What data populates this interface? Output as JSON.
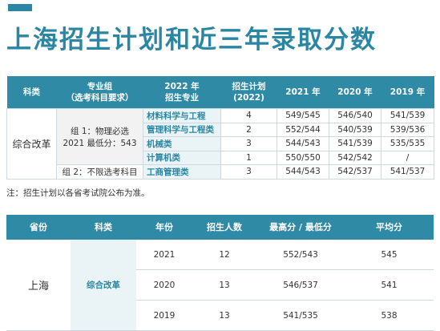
{
  "header": {
    "title": "上海招生计划和近三年录取分数"
  },
  "plan_table": {
    "columns": [
      [
        "科类"
      ],
      [
        "专业组",
        "（选考科目要求）"
      ],
      [
        "2022 年",
        "招生专业"
      ],
      [
        "招生计划",
        "(2022)"
      ],
      [
        "2021 年"
      ],
      [
        "2020 年"
      ],
      [
        "2019 年"
      ]
    ],
    "category": "综合改革",
    "groups": [
      {
        "label": [
          "组 1：物理必选",
          "2021 最低分：543"
        ],
        "rows": [
          [
            "材料科学与工程",
            4,
            "549/545",
            "546/540",
            "541/539"
          ],
          [
            "管理科学与工程类",
            2,
            "552/544",
            "540/539",
            "539/536"
          ],
          [
            "机械类",
            3,
            "544/543",
            "541/539",
            "535/535"
          ],
          [
            "计算机类",
            1,
            "550/550",
            "542/542",
            "/"
          ]
        ]
      },
      {
        "label": [
          "组 2：不限选考科目"
        ],
        "rows": [
          [
            "工商管理类",
            3,
            "544/543",
            "542/537",
            "541/537"
          ]
        ]
      }
    ]
  },
  "note": "注：招生计划以各省考试院公布为准。",
  "score_table": {
    "columns": [
      "省份",
      "科类",
      "年份",
      "招生人数",
      "最高分 / 最低分",
      "平均分"
    ],
    "province": "上海",
    "category": "综合改革",
    "rows": [
      [
        2021,
        12,
        "552/543",
        545
      ],
      [
        2020,
        13,
        "546/537",
        541
      ],
      [
        2019,
        13,
        "541/535",
        538
      ]
    ]
  }
}
